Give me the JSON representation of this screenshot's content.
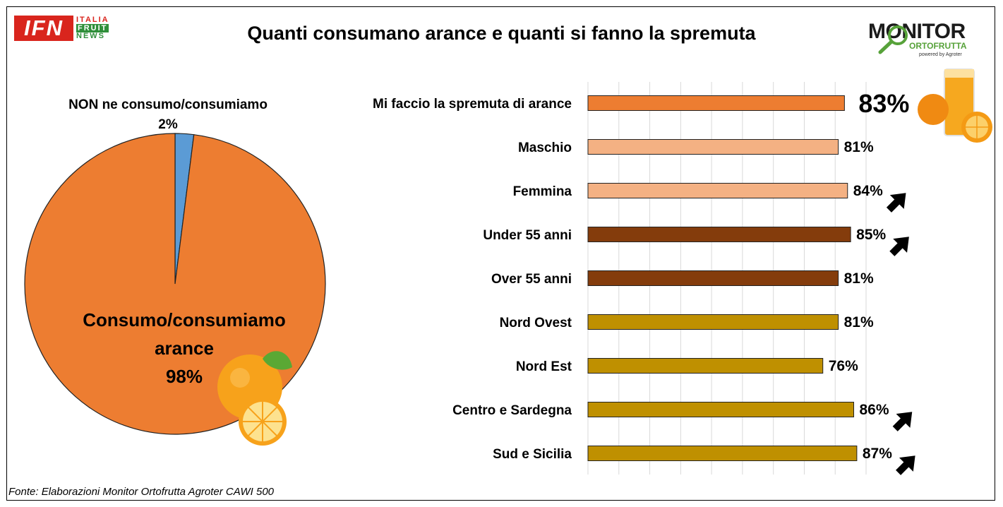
{
  "title": "Quanti consumano arance e quanti si fanno la spremuta",
  "logo_left": {
    "text": "IFN",
    "words": [
      "ITALIA",
      "FRUIT",
      "NEWS"
    ]
  },
  "logo_right": {
    "word": "MONITOR",
    "sub": "ORTOFRUTTA",
    "powered": "powered by Agroter"
  },
  "source": "Fonte: Elaborazioni Monitor Ortofrutta Agroter CAWI 500",
  "colors": {
    "orange": "#ed7d31",
    "light_orange": "#f4b183",
    "brown": "#843c0c",
    "gold": "#bf9000",
    "blue": "#5b9bd5"
  },
  "chart_data": [
    {
      "type": "pie",
      "slices": [
        {
          "label": "NON ne consumo/consumiamo",
          "value": 2,
          "value_label": "2%",
          "color": "#5b9bd5"
        },
        {
          "label": "Consumo/consumiamo arance",
          "label_lines": [
            "Consumo/consumiamo",
            "arance"
          ],
          "value": 98,
          "value_label": "98%",
          "color": "#ed7d31"
        }
      ]
    },
    {
      "type": "bar",
      "orientation": "horizontal",
      "categories": [
        "Mi faccio la spremuta di arance",
        "Maschio",
        "Femmina",
        "Under 55 anni",
        "Over 55 anni",
        "Nord Ovest",
        "Nord Est",
        "Centro e Sardegna",
        "Sud e Sicilia"
      ],
      "values": [
        83,
        81,
        84,
        85,
        81,
        81,
        76,
        86,
        87
      ],
      "value_labels": [
        "83%",
        "81%",
        "84%",
        "85%",
        "81%",
        "81%",
        "76%",
        "86%",
        "87%"
      ],
      "colors": [
        "#ed7d31",
        "#f4b183",
        "#f4b183",
        "#843c0c",
        "#843c0c",
        "#bf9000",
        "#bf9000",
        "#bf9000",
        "#bf9000"
      ],
      "highlighted": [
        false,
        false,
        true,
        true,
        false,
        false,
        false,
        true,
        true
      ],
      "xlim": [
        0,
        90
      ],
      "grid": true
    }
  ]
}
